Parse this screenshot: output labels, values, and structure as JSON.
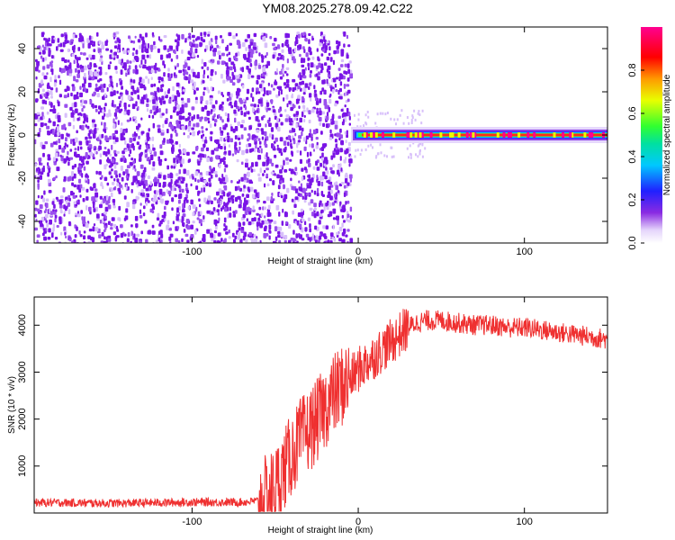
{
  "title": "YM08.2025.278.09.42.C22",
  "colors": {
    "background": "#ffffff",
    "series": "#ef3030",
    "speckle_dark": "#7a14e6",
    "speckle_light": "#d8c0fa"
  },
  "chart_data": [
    {
      "type": "heatmap",
      "xlabel": "Height of straight line (km)",
      "ylabel": "Frequency (Hz)",
      "xlim": [
        -195,
        150
      ],
      "ylim": [
        -50,
        50
      ],
      "xticks": [
        -100,
        0,
        100
      ],
      "xtick_labels": [
        "-100",
        "0",
        "100"
      ],
      "yticks": [
        -40,
        -20,
        0,
        20,
        40
      ],
      "ytick_labels": [
        "-40",
        "-20",
        "0",
        "20",
        "40"
      ],
      "colorbar": {
        "label": "Normalized spectral amplitude",
        "range": [
          0,
          1
        ],
        "ticks": [
          0,
          0.2,
          0.4,
          0.6,
          0.8
        ],
        "tick_labels": [
          "0.0",
          "0.2",
          "0.4",
          "0.6",
          "0.8"
        ],
        "colormap": "rainbow (white→purple→blue→cyan→green→yellow→red→magenta)"
      },
      "regions": [
        {
          "x_range": [
            -195,
            -5
          ],
          "frequency_range": [
            -50,
            48
          ],
          "amplitude": "low (~0.05-0.15), noise speckle"
        },
        {
          "x_range": [
            0,
            150
          ],
          "frequency": 0,
          "amplitude": "high (~0.7-1.0), narrow band at 0 Hz"
        }
      ]
    },
    {
      "type": "line",
      "xlabel": "Height of straight line (km)",
      "ylabel": "SNR (10 * v/v)",
      "xlim": [
        -195,
        150
      ],
      "ylim": [
        0,
        4600
      ],
      "xticks": [
        -100,
        0,
        100
      ],
      "xtick_labels": [
        "-100",
        "0",
        "100"
      ],
      "yticks": [
        1000,
        2000,
        3000,
        4000
      ],
      "ytick_labels": [
        "1000",
        "2000",
        "3000",
        "4000"
      ],
      "series": [
        {
          "x": [
            -195,
            -180,
            -160,
            -140,
            -120,
            -100,
            -80,
            -70,
            -60,
            -55,
            -50,
            -45,
            -40,
            -35,
            -30,
            -25,
            -20,
            -15,
            -10,
            -5,
            0,
            5,
            10,
            15,
            20,
            25,
            30,
            35,
            40,
            50,
            60,
            70,
            80,
            90,
            100,
            110,
            120,
            130,
            140,
            150
          ],
          "y": [
            220,
            220,
            210,
            210,
            220,
            230,
            230,
            230,
            260,
            350,
            550,
            900,
            1250,
            1550,
            1750,
            1950,
            2250,
            2500,
            2700,
            2850,
            3050,
            3200,
            3350,
            3500,
            3650,
            3800,
            3950,
            4050,
            4100,
            4100,
            4050,
            4000,
            4000,
            3950,
            3950,
            3900,
            3850,
            3800,
            3750,
            3700
          ]
        }
      ]
    }
  ]
}
